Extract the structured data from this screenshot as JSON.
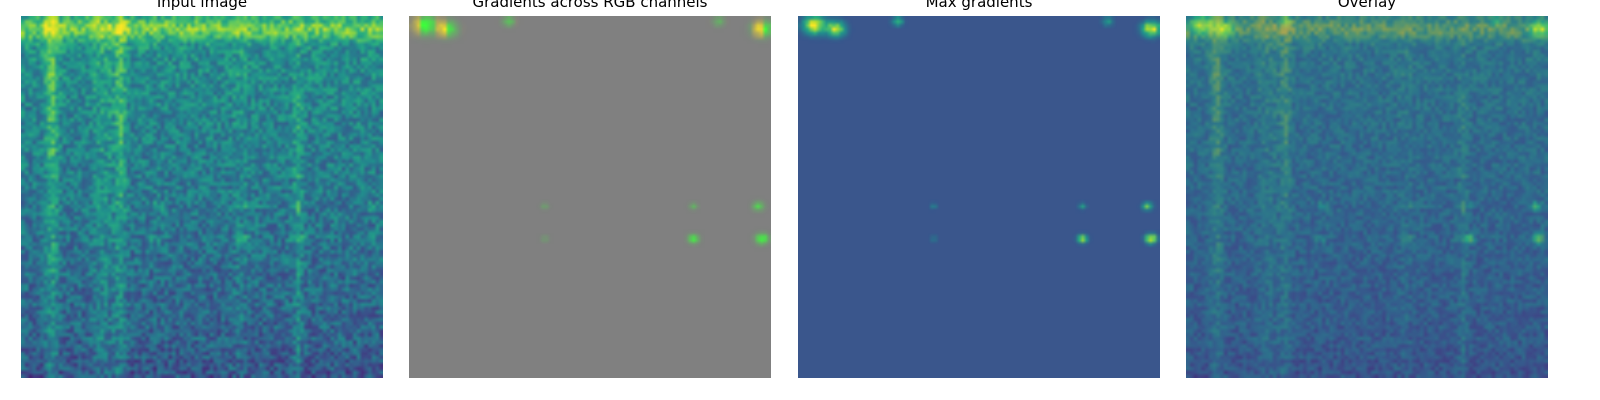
{
  "panels": [
    {
      "title": "Input image"
    },
    {
      "title": "Gradients across RGB channels"
    },
    {
      "title": "Max gradients"
    },
    {
      "title": "Overlay"
    }
  ],
  "colors": {
    "gradient_gray": "#808080",
    "max_gradient_base": "#3a568c",
    "highlight_yellow": "#fde725",
    "highlight_green": "#3cff3c"
  }
}
